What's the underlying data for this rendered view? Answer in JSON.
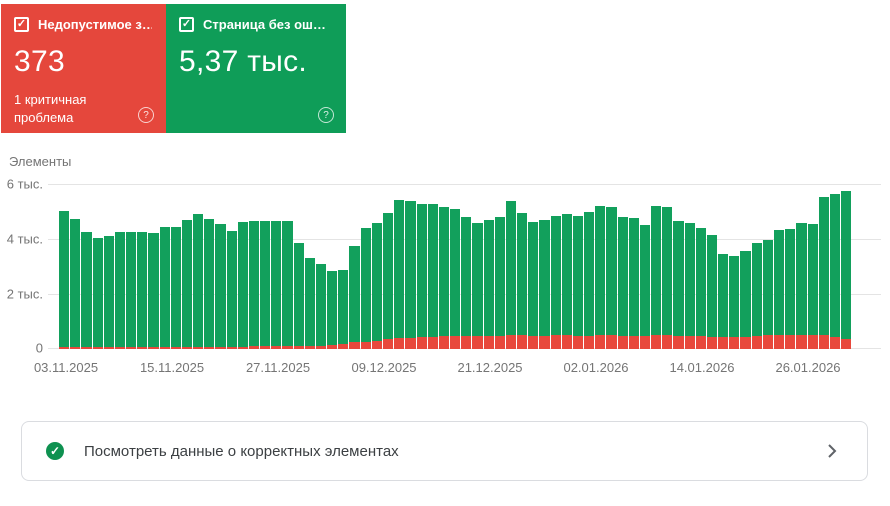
{
  "cards": {
    "error": {
      "label": "Недопустимое з…",
      "value": "373",
      "sublabel": "1 критичная проблема",
      "color": "#e5473c",
      "checked": true
    },
    "valid": {
      "label": "Страница без ош…",
      "value": "5,37 тыс.",
      "color": "#0f9d58",
      "checked": true
    }
  },
  "chart_data": {
    "type": "bar",
    "stacked": true,
    "title": "Элементы",
    "ylim": [
      0,
      6000
    ],
    "ytick_labels_top_to_bottom": [
      "6 тыс.",
      "4 тыс.",
      "2 тыс.",
      "0"
    ],
    "xtick_labels": [
      "03.11.2025",
      "15.11.2025",
      "27.11.2025",
      "09.12.2025",
      "21.12.2025",
      "02.01.2026",
      "14.01.2026",
      "26.01.2026"
    ],
    "grid": true,
    "legend_position": "none",
    "series": [
      {
        "name": "Недопустимое з…",
        "role": "errors",
        "color": "#e8483c",
        "values": [
          70,
          70,
          65,
          65,
          65,
          70,
          70,
          70,
          70,
          75,
          75,
          75,
          80,
          80,
          80,
          80,
          85,
          110,
          110,
          110,
          110,
          100,
          100,
          100,
          145,
          182,
          244,
          266,
          302,
          353,
          389,
          389,
          426,
          426,
          473,
          480,
          480,
          490,
          490,
          490,
          500,
          500,
          490,
          490,
          500,
          500,
          490,
          490,
          500,
          500,
          490,
          490,
          480,
          500,
          500,
          470,
          470,
          460,
          450,
          450,
          450,
          450,
          460,
          505,
          505,
          505,
          505,
          505,
          505,
          420,
          373
        ]
      },
      {
        "name": "Страница без ош…",
        "role": "valid",
        "color": "#12a05c",
        "values": [
          4960,
          4650,
          4205,
          3985,
          4055,
          4180,
          4180,
          4180,
          4140,
          4355,
          4355,
          4615,
          4820,
          4640,
          4450,
          4220,
          4545,
          4550,
          4550,
          4550,
          4550,
          3750,
          3200,
          3000,
          2705,
          2698,
          3486,
          4124,
          4268,
          4597,
          5041,
          5001,
          4844,
          4844,
          4697,
          4600,
          4310,
          4080,
          4220,
          4300,
          4890,
          4450,
          4140,
          4220,
          4340,
          4410,
          4350,
          4510,
          4700,
          4670,
          4320,
          4260,
          4030,
          4700,
          4650,
          4200,
          4100,
          3930,
          3700,
          3020,
          2950,
          3130,
          3390,
          3465,
          3825,
          3845,
          4065,
          4045,
          5025,
          5230,
          5367
        ]
      }
    ]
  },
  "action_bar": {
    "label": "Посмотреть данные о корректных элементах"
  },
  "icons": {
    "checkbox_check": "✓",
    "help": "?",
    "circle_check": "✓"
  },
  "colors": {
    "axis_text": "#757575",
    "gridline": "#e4e4e4",
    "action_border": "#dadce0",
    "action_text": "#3c4043",
    "check_circle": "#0e9150"
  }
}
